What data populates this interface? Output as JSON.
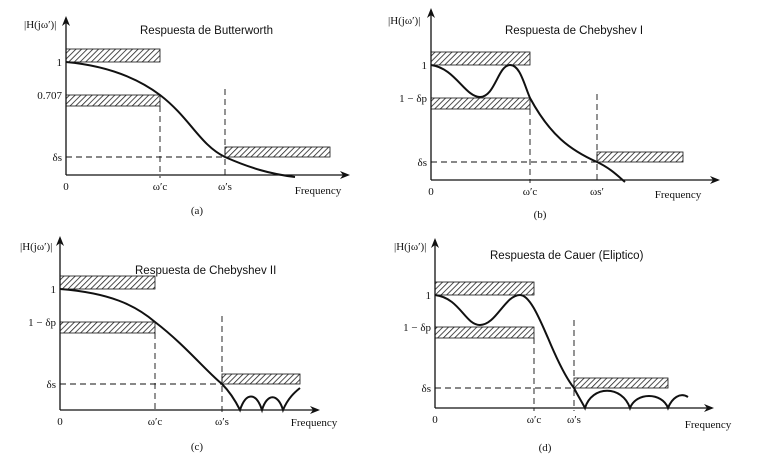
{
  "panels": [
    {
      "id": "a",
      "title": "Respuesta de Butterworth",
      "ylabel": "|H(jω′)|",
      "y_top": "1",
      "y_mid": "0.707",
      "y_low": "δs",
      "origin": "0",
      "wc": "ω′c",
      "ws": "ω′s",
      "xlabel": "Frequency",
      "caption": "(a)",
      "response": "butterworth"
    },
    {
      "id": "b",
      "title": "Respuesta de Chebyshev I",
      "ylabel": "|H(jω′)|",
      "y_top": "1",
      "y_mid": "1 − δp",
      "y_low": "δs",
      "origin": "0",
      "wc": "ω′c",
      "ws": "ωs′",
      "xlabel": "Frequency",
      "caption": "(b)",
      "response": "chebyshev-1"
    },
    {
      "id": "c",
      "title": "Respuesta de Chebyshev  II",
      "ylabel": "|H(jω′)|",
      "y_top": "1",
      "y_mid": "1 − δp",
      "y_low": "δs",
      "origin": "0",
      "wc": "ω′c",
      "ws": "ω′s",
      "xlabel": "Frequency",
      "caption": "(c)",
      "response": "chebyshev-2"
    },
    {
      "id": "d",
      "title": "Respuesta de Cauer (Eliptico)",
      "ylabel": "|H(jω′)|",
      "y_top": "1",
      "y_mid": "1 − δp",
      "y_low": "δs",
      "origin": "0",
      "wc": "ω′c",
      "ws": "ω′s",
      "xlabel": "Frequency",
      "caption": "(d)",
      "response": "elliptic"
    }
  ]
}
